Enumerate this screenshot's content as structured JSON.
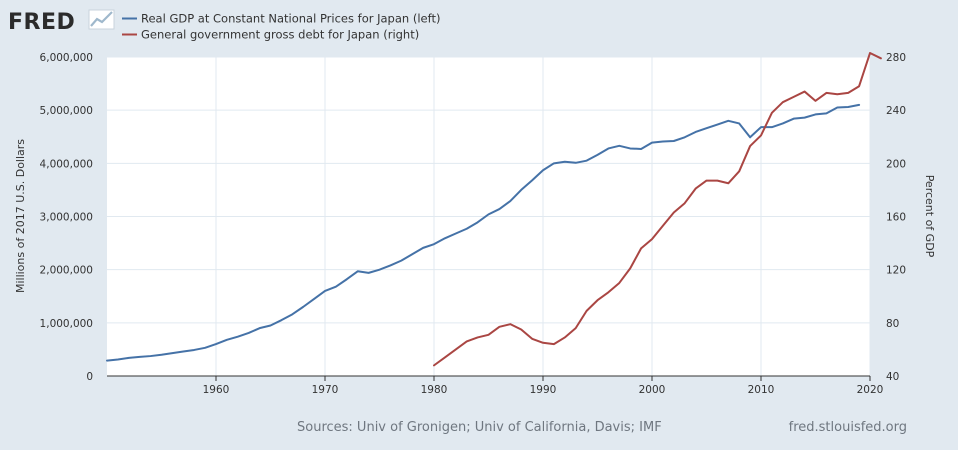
{
  "brand": {
    "logo_text": "FRED",
    "logo_icon": "fred-chart-icon"
  },
  "legend": [
    {
      "label": "Real GDP at Constant National Prices for Japan (left)",
      "color": "#4572a7"
    },
    {
      "label": "General government gross debt for Japan (right)",
      "color": "#aa4643"
    }
  ],
  "footer": {
    "sources": "Sources: Univ of Gronigen; Univ of California, Davis; IMF",
    "site": "fred.stlouisfed.org"
  },
  "colors": {
    "background": "#e1e9f0",
    "plot_background": "#ffffff",
    "grid": "#e1e9f0",
    "gdp": "#4572a7",
    "debt": "#aa4643"
  },
  "chart_data": {
    "type": "line",
    "xlim": [
      1950,
      2020
    ],
    "x_ticks": [
      1960,
      1970,
      1980,
      1990,
      2000,
      2010,
      2020
    ],
    "y_left": {
      "label": "Millions of 2017 U.S. Dollars",
      "ylim": [
        0,
        6000000
      ],
      "ticks": [
        0,
        1000000,
        2000000,
        3000000,
        4000000,
        5000000,
        6000000
      ],
      "tick_labels": [
        "0",
        "1,000,000",
        "2,000,000",
        "3,000,000",
        "4,000,000",
        "5,000,000",
        "6,000,000"
      ]
    },
    "y_right": {
      "label": "Percent of GDP",
      "ylim": [
        40,
        280
      ],
      "ticks": [
        40,
        80,
        120,
        160,
        200,
        240,
        280
      ],
      "tick_labels": [
        "40",
        "80",
        "120",
        "160",
        "200",
        "240",
        "280"
      ]
    },
    "grid": true,
    "legend_position": "top-left",
    "series": [
      {
        "name": "Real GDP at Constant National Prices for Japan (left)",
        "axis": "left",
        "color": "#4572a7",
        "x": [
          1950,
          1951,
          1952,
          1953,
          1954,
          1955,
          1956,
          1957,
          1958,
          1959,
          1960,
          1961,
          1962,
          1963,
          1964,
          1965,
          1966,
          1967,
          1968,
          1969,
          1970,
          1971,
          1972,
          1973,
          1974,
          1975,
          1976,
          1977,
          1978,
          1979,
          1980,
          1981,
          1982,
          1983,
          1984,
          1985,
          1986,
          1987,
          1988,
          1989,
          1990,
          1991,
          1992,
          1993,
          1994,
          1995,
          1996,
          1997,
          1998,
          1999,
          2000,
          2001,
          2002,
          2003,
          2004,
          2005,
          2006,
          2007,
          2008,
          2009,
          2010,
          2011,
          2012,
          2013,
          2014,
          2015,
          2016,
          2017,
          2018,
          2019
        ],
        "values": [
          290000,
          310000,
          340000,
          360000,
          375000,
          400000,
          430000,
          460000,
          490000,
          530000,
          600000,
          680000,
          740000,
          810000,
          900000,
          950000,
          1050000,
          1160000,
          1300000,
          1450000,
          1600000,
          1680000,
          1820000,
          1970000,
          1940000,
          2000000,
          2080000,
          2170000,
          2290000,
          2410000,
          2480000,
          2590000,
          2680000,
          2770000,
          2890000,
          3040000,
          3140000,
          3290000,
          3500000,
          3680000,
          3870000,
          4000000,
          4030000,
          4010000,
          4050000,
          4160000,
          4280000,
          4330000,
          4280000,
          4270000,
          4390000,
          4410000,
          4420000,
          4490000,
          4590000,
          4660000,
          4730000,
          4800000,
          4750000,
          4490000,
          4680000,
          4680000,
          4750000,
          4840000,
          4860000,
          4920000,
          4940000,
          5050000,
          5060000,
          5100000
        ]
      },
      {
        "name": "General government gross debt for Japan (right)",
        "axis": "right",
        "color": "#aa4643",
        "x": [
          1980,
          1981,
          1982,
          1983,
          1984,
          1985,
          1986,
          1987,
          1988,
          1989,
          1990,
          1991,
          1992,
          1993,
          1994,
          1995,
          1996,
          1997,
          1998,
          1999,
          2000,
          2001,
          2002,
          2003,
          2004,
          2005,
          2006,
          2007,
          2008,
          2009,
          2010,
          2011,
          2012,
          2013,
          2014,
          2015,
          2016,
          2017,
          2018,
          2019,
          2020,
          2021
        ],
        "values": [
          48,
          54,
          60,
          66,
          69,
          71,
          77,
          79,
          75,
          68,
          65,
          64,
          69,
          76,
          89,
          97,
          103,
          110,
          121,
          136,
          143,
          153,
          163,
          170,
          181,
          187,
          187,
          185,
          194,
          213,
          221,
          238,
          246,
          250,
          254,
          247,
          253,
          252,
          253,
          258,
          283,
          279
        ]
      }
    ]
  }
}
